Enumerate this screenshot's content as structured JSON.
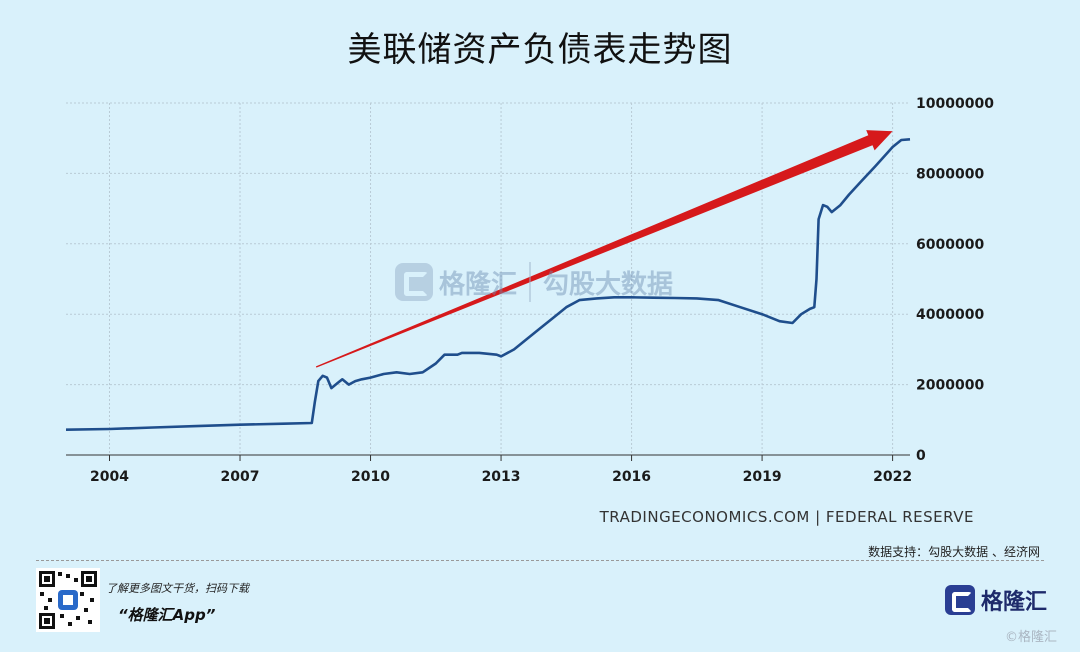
{
  "title": "美联储资产负债表走势图",
  "chart_data": {
    "type": "line",
    "title": "美联储资产负债表走势图",
    "xlabel": "",
    "ylabel": "",
    "x_ticks": [
      "2004",
      "2007",
      "2010",
      "2013",
      "2016",
      "2019",
      "2022"
    ],
    "y_ticks": [
      "0",
      "2000000",
      "4000000",
      "6000000",
      "8000000",
      "10000000"
    ],
    "xlim": [
      2003.0,
      2022.4
    ],
    "ylim": [
      0,
      10000000
    ],
    "grid": true,
    "series": [
      {
        "color": "#1f4e8c",
        "x": [
          2003.0,
          2004.0,
          2005.0,
          2006.0,
          2007.0,
          2008.0,
          2008.65,
          2008.72,
          2008.8,
          2008.9,
          2009.0,
          2009.1,
          2009.25,
          2009.35,
          2009.5,
          2009.65,
          2009.8,
          2010.0,
          2010.3,
          2010.6,
          2010.9,
          2011.2,
          2011.5,
          2011.7,
          2012.0,
          2012.1,
          2012.5,
          2012.9,
          2013.0,
          2013.3,
          2013.6,
          2013.9,
          2014.2,
          2014.5,
          2014.8,
          2015.2,
          2015.6,
          2016.0,
          2016.5,
          2017.0,
          2017.5,
          2018.0,
          2018.5,
          2019.0,
          2019.4,
          2019.7,
          2019.9,
          2020.1,
          2020.2,
          2020.25,
          2020.3,
          2020.4,
          2020.5,
          2020.6,
          2020.8,
          2021.0,
          2021.3,
          2021.6,
          2022.0,
          2022.2,
          2022.4
        ],
        "y": [
          720000,
          740000,
          780000,
          820000,
          860000,
          890000,
          910000,
          1500000,
          2100000,
          2250000,
          2200000,
          1900000,
          2050000,
          2150000,
          2000000,
          2100000,
          2150000,
          2200000,
          2300000,
          2350000,
          2300000,
          2350000,
          2600000,
          2850000,
          2850000,
          2900000,
          2900000,
          2850000,
          2800000,
          3000000,
          3300000,
          3600000,
          3900000,
          4200000,
          4400000,
          4450000,
          4480000,
          4480000,
          4470000,
          4460000,
          4450000,
          4400000,
          4200000,
          4000000,
          3800000,
          3750000,
          4000000,
          4150000,
          4200000,
          5000000,
          6700000,
          7100000,
          7050000,
          6900000,
          7100000,
          7400000,
          7800000,
          8200000,
          8750000,
          8950000,
          8970000
        ]
      }
    ],
    "trend_arrow": {
      "color": "#d6191b",
      "from": [
        2008.75,
        2500000
      ],
      "to": [
        2022.0,
        9200000
      ]
    }
  },
  "source_line": "TRADINGECONOMICS.COM  |  FEDERAL RESERVE",
  "data_support": "数据支持：勾股大数据 、经济网",
  "watermark": {
    "left": "格隆汇",
    "right": "勾股大数据"
  },
  "promo": {
    "line1": "了解更多图文干货，扫码下载",
    "app": "“格隆汇App”"
  },
  "brand": {
    "name": "格隆汇"
  },
  "corner_watermark": "©格隆汇"
}
